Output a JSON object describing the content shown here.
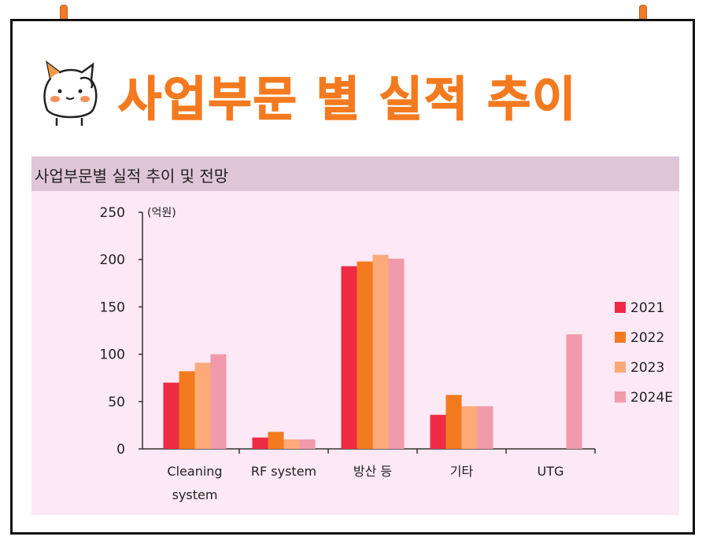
{
  "page": {
    "title": "사업부문 별 실적 추이",
    "mascot_icon": "cat-mascot-icon"
  },
  "colors": {
    "title": "#f47a20",
    "panel_bg": "#fde8f5",
    "header_bg": "#dfc6d7",
    "pin": "#f07b2d"
  },
  "chart_data": {
    "type": "bar",
    "title": "사업부문별 실적 추이 및 전망",
    "unit": "(억원)",
    "xlabel": "",
    "ylabel": "",
    "ylim": [
      0,
      250
    ],
    "yticks": [
      0,
      50,
      100,
      150,
      200,
      250
    ],
    "categories": [
      "Cleaning system",
      "RF system",
      "방산 등",
      "기타",
      "UTG"
    ],
    "legend_position": "right",
    "grid": false,
    "series": [
      {
        "name": "2021",
        "color": "#ee2a45",
        "values": [
          70,
          12,
          193,
          36,
          null
        ]
      },
      {
        "name": "2022",
        "color": "#f47a20",
        "values": [
          82,
          18,
          198,
          57,
          null
        ]
      },
      {
        "name": "2023",
        "color": "#fbaa78",
        "values": [
          91,
          10,
          205,
          45,
          null
        ]
      },
      {
        "name": "2024E",
        "color": "#f19aac",
        "values": [
          100,
          10,
          201,
          45,
          121
        ]
      }
    ]
  }
}
